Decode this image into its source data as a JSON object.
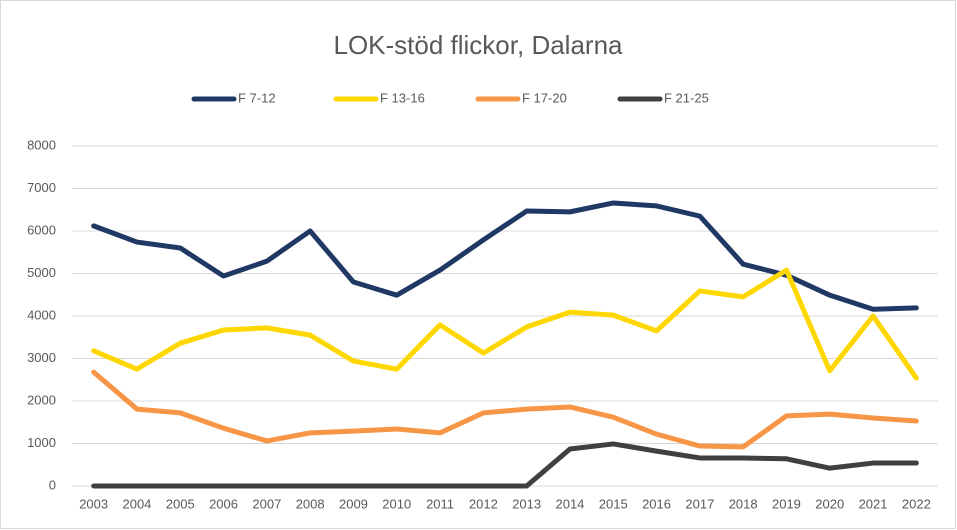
{
  "chart_data": {
    "type": "line",
    "title": "LOK-stöd flickor, Dalarna",
    "categories": [
      "2003",
      "2004",
      "2005",
      "2006",
      "2007",
      "2008",
      "2009",
      "2010",
      "2011",
      "2012",
      "2013",
      "2014",
      "2015",
      "2016",
      "2017",
      "2018",
      "2019",
      "2020",
      "2021",
      "2022"
    ],
    "series": [
      {
        "name": "F 7-12",
        "color": "#203864",
        "values": [
          6120,
          5740,
          5600,
          4940,
          5290,
          6000,
          4800,
          4490,
          5080,
          5790,
          6470,
          6450,
          6660,
          6590,
          6350,
          5220,
          4960,
          4490,
          4160,
          4190
        ]
      },
      {
        "name": "F 13-16",
        "color": "#ffd700",
        "values": [
          3180,
          2750,
          3360,
          3670,
          3720,
          3550,
          2940,
          2750,
          3790,
          3130,
          3740,
          4090,
          4020,
          3650,
          4590,
          4450,
          5080,
          2710,
          4000,
          2540
        ]
      },
      {
        "name": "F 17-20",
        "color": "#f79646",
        "values": [
          2680,
          1810,
          1720,
          1360,
          1060,
          1250,
          1290,
          1340,
          1250,
          1720,
          1810,
          1860,
          1620,
          1220,
          940,
          920,
          1650,
          1690,
          1600,
          1530
        ]
      },
      {
        "name": "F 21-25",
        "color": "#404040",
        "values": [
          0,
          0,
          0,
          0,
          0,
          0,
          0,
          0,
          0,
          0,
          0,
          870,
          990,
          820,
          660,
          660,
          640,
          420,
          540,
          540
        ]
      }
    ],
    "ylim": [
      0,
      8000
    ],
    "yticks": [
      0,
      1000,
      2000,
      3000,
      4000,
      5000,
      6000,
      7000,
      8000
    ],
    "grid": true,
    "legend": "top"
  }
}
